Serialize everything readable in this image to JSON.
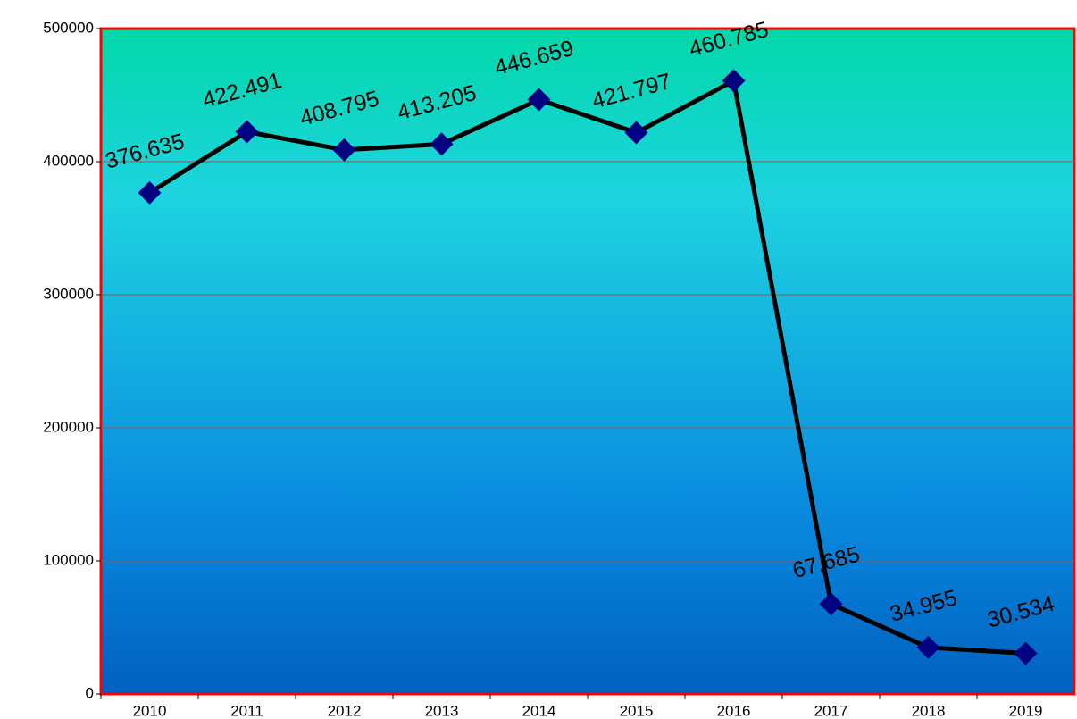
{
  "chart_data": {
    "type": "line",
    "categories": [
      "2010",
      "2011",
      "2012",
      "2013",
      "2014",
      "2015",
      "2016",
      "2017",
      "2018",
      "2019"
    ],
    "values": [
      376635,
      422491,
      408795,
      413205,
      446659,
      421797,
      460785,
      67685,
      34955,
      30534
    ],
    "value_labels": [
      "376.635",
      "422.491",
      "408.795",
      "413.205",
      "446.659",
      "421.797",
      "460.785",
      "67.685",
      "34.955",
      "30.534"
    ],
    "color": "#000000",
    "marker_color": "#000080",
    "ylim": [
      0,
      500000
    ],
    "yticks": [
      0,
      100000,
      200000,
      300000,
      400000,
      500000
    ],
    "grid": true
  }
}
